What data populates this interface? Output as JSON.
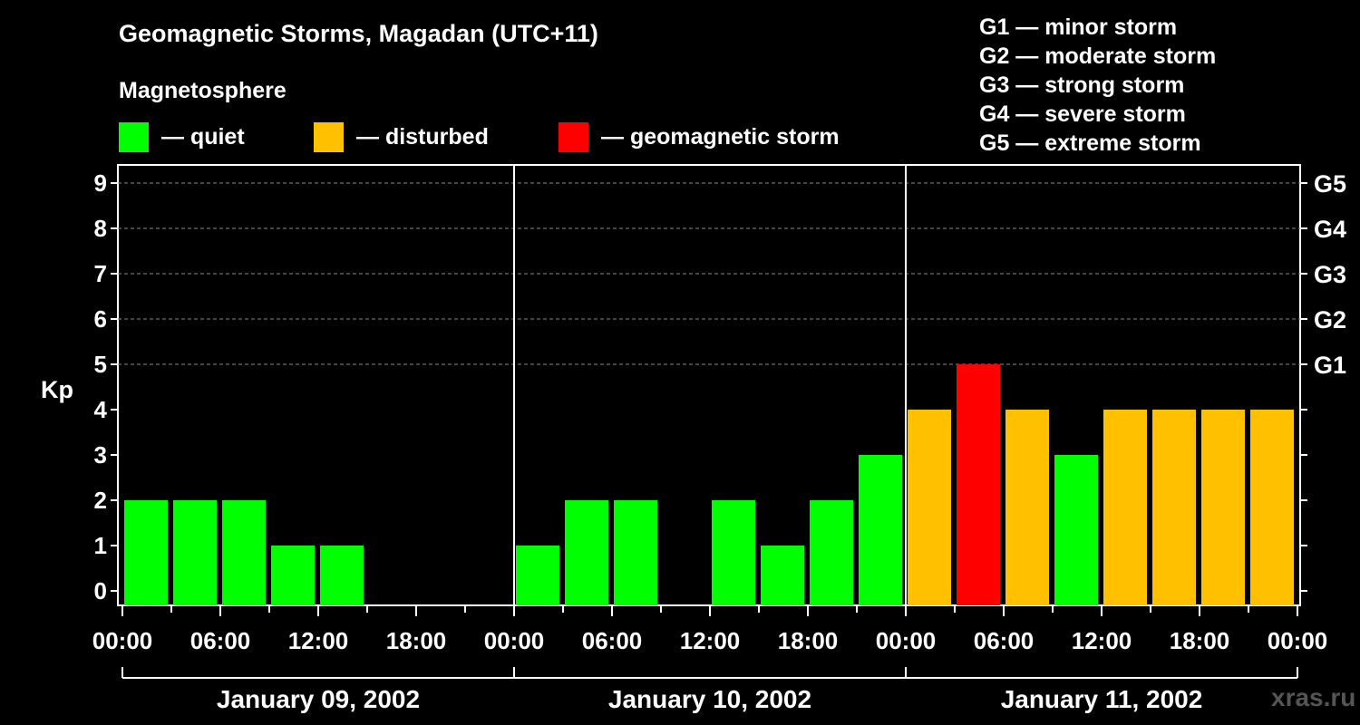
{
  "title": "Geomagnetic Storms, Magadan (UTC+11)",
  "subtitle": "Magnetosphere",
  "legend": [
    {
      "label": "— quiet",
      "color": "#00ff00"
    },
    {
      "label": "— disturbed",
      "color": "#ffc000"
    },
    {
      "label": "— geomagnetic storm",
      "color": "#ff0000"
    }
  ],
  "g_scale": [
    "G1 — minor storm",
    "G2 — moderate storm",
    "G3 — strong storm",
    "G4 — severe storm",
    "G5 — extreme storm"
  ],
  "watermark": "xras.ru",
  "chart_data": {
    "type": "bar",
    "title": "Geomagnetic Storms, Magadan (UTC+11)",
    "ylabel": "Kp",
    "ylim": [
      0,
      9
    ],
    "yticks": [
      "0",
      "1",
      "2",
      "3",
      "4",
      "5",
      "6",
      "7",
      "8",
      "9"
    ],
    "right_axis": [
      {
        "kp": 5,
        "label": "G1"
      },
      {
        "kp": 6,
        "label": "G2"
      },
      {
        "kp": 7,
        "label": "G3"
      },
      {
        "kp": 8,
        "label": "G4"
      },
      {
        "kp": 9,
        "label": "G5"
      }
    ],
    "x_tick_labels": [
      "00:00",
      "06:00",
      "12:00",
      "18:00",
      "00:00",
      "06:00",
      "12:00",
      "18:00",
      "00:00",
      "06:00",
      "12:00",
      "18:00",
      "00:00"
    ],
    "days": [
      "January 09, 2002",
      "January 10, 2002",
      "January 11, 2002"
    ],
    "interval_hours": 3,
    "values": [
      2,
      2,
      2,
      1,
      1,
      0,
      0,
      0,
      1,
      2,
      2,
      0,
      2,
      1,
      2,
      3,
      4,
      5,
      4,
      3,
      4,
      4,
      4,
      4
    ],
    "colors": {
      "quiet": "#00ff00",
      "disturbed": "#ffc000",
      "storm": "#ff0000"
    },
    "thresholds": {
      "disturbed": 4,
      "storm": 5
    },
    "grid": true
  }
}
